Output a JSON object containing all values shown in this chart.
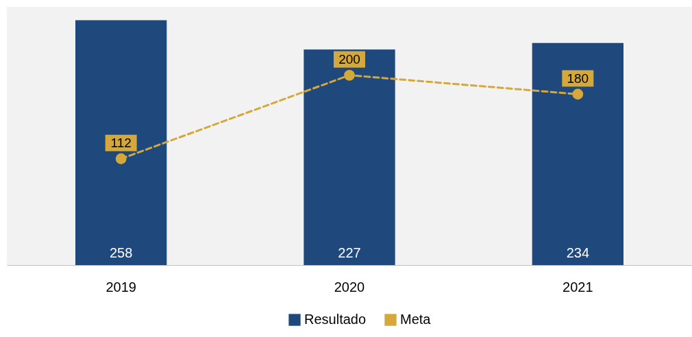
{
  "chart_data": {
    "type": "bar",
    "categories": [
      "2019",
      "2020",
      "2021"
    ],
    "series": [
      {
        "name": "Resultado",
        "color": "#1f497d",
        "values": [
          258,
          227,
          234
        ]
      },
      {
        "name": "Meta",
        "type": "line",
        "color": "#d4a83a",
        "values": [
          112,
          200,
          180
        ],
        "marker": "circle",
        "line_style": "dashed"
      }
    ],
    "ylim": [
      0,
      272
    ],
    "data_labels": true,
    "legend": "bottom"
  }
}
